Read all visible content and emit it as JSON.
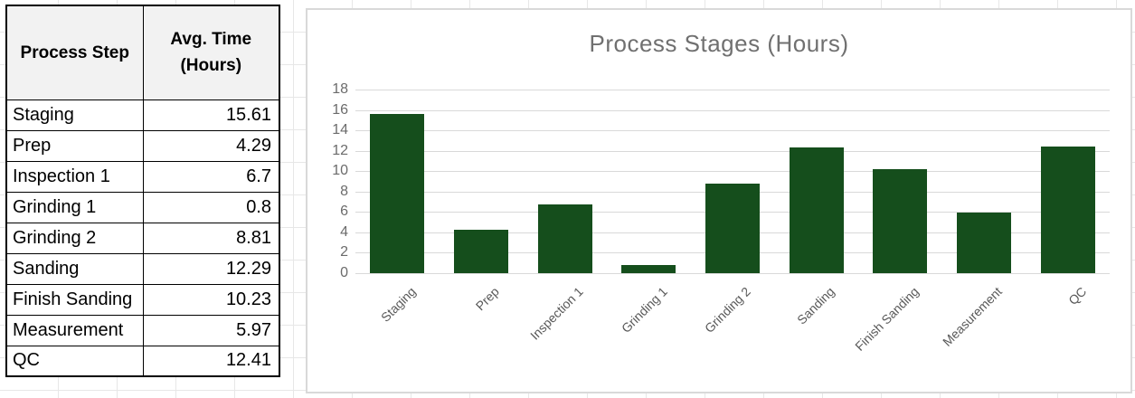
{
  "table": {
    "headers": [
      "Process Step",
      "Avg. Time (Hours)"
    ],
    "rows": [
      {
        "step": "Staging",
        "value": "15.61"
      },
      {
        "step": "Prep",
        "value": "4.29"
      },
      {
        "step": "Inspection 1",
        "value": "6.7"
      },
      {
        "step": "Grinding 1",
        "value": "0.8"
      },
      {
        "step": "Grinding 2",
        "value": "8.81"
      },
      {
        "step": "Sanding",
        "value": "12.29"
      },
      {
        "step": "Finish Sanding",
        "value": "10.23"
      },
      {
        "step": "Measurement",
        "value": "5.97"
      },
      {
        "step": "QC",
        "value": "12.41"
      }
    ]
  },
  "chart_data": {
    "type": "bar",
    "title": "Process Stages (Hours)",
    "categories": [
      "Staging",
      "Prep",
      "Inspection 1",
      "Grinding 1",
      "Grinding 2",
      "Sanding",
      "Finish Sanding",
      "Measurement",
      "QC"
    ],
    "values": [
      15.61,
      4.29,
      6.7,
      0.8,
      8.81,
      12.29,
      10.23,
      5.97,
      12.41
    ],
    "xlabel": "",
    "ylabel": "",
    "ylim": [
      0,
      18
    ],
    "yticks": [
      0,
      2,
      4,
      6,
      8,
      10,
      12,
      14,
      16,
      18
    ],
    "grid": "horizontal",
    "legend": "none",
    "bar_color": "#154e1c",
    "gridline_color": "#d9d9d9",
    "title_color": "#707070",
    "tick_label_color": "#595959"
  }
}
